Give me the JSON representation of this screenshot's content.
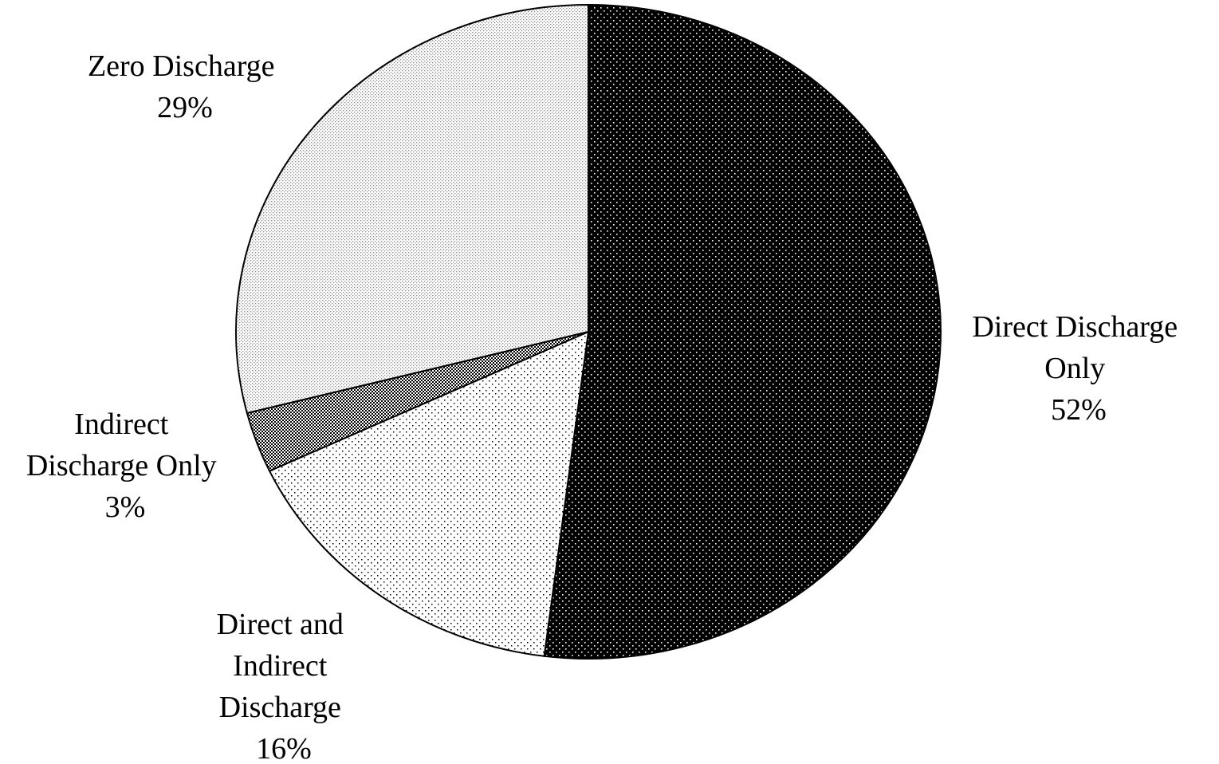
{
  "chart_data": {
    "type": "pie",
    "title": "",
    "start_angle_deg": 0,
    "direction": "clockwise",
    "slices": [
      {
        "label_lines": [
          "Direct Discharge",
          "Only"
        ],
        "value": 52,
        "value_label": "52%",
        "pattern": "dark-dots"
      },
      {
        "label_lines": [
          "Direct and",
          "Indirect",
          "Discharge"
        ],
        "value": 16,
        "value_label": "16%",
        "pattern": "sparse-dots"
      },
      {
        "label_lines": [
          "Indirect",
          "Discharge Only"
        ],
        "value": 3,
        "value_label": "3%",
        "pattern": "checker"
      },
      {
        "label_lines": [
          "Zero Discharge"
        ],
        "value": 29,
        "value_label": "29%",
        "pattern": "light-stipple"
      }
    ],
    "legend": "none",
    "colors": {
      "outline": "#000000",
      "dark_fill": "#000000",
      "light_fill": "#ffffff",
      "stipple": "#9a9a9a"
    }
  }
}
